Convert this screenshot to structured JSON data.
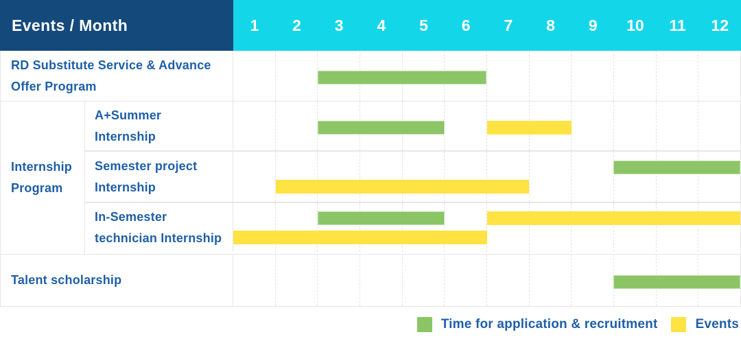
{
  "colors": {
    "header_bg": "#14497c",
    "month_header_bg": "#13d6e9",
    "header_text": "#ffffff",
    "label_text": "#1e5fa8",
    "green": "#8bc566",
    "yellow": "#fee343"
  },
  "chart_data": {
    "type": "bar",
    "subtype": "gantt-timeline",
    "title": "Events / Month",
    "xlabel": "Month",
    "x_ticks": [
      "1",
      "2",
      "3",
      "4",
      "5",
      "6",
      "7",
      "8",
      "9",
      "10",
      "11",
      "12"
    ],
    "x_range": [
      1,
      12
    ],
    "grid": true,
    "legend_position": "bottom-right",
    "legend": [
      {
        "key": "green",
        "label": "Time for application & recruitment",
        "color": "#8bc566"
      },
      {
        "key": "yellow",
        "label": "Events",
        "color": "#fee343"
      }
    ],
    "rows": [
      {
        "label": "RD Substitute Service & Advance Offer Program",
        "group": "",
        "lines": 1,
        "bars": [
          {
            "legend": "green",
            "start": 3,
            "end": 6,
            "line": 0
          }
        ]
      },
      {
        "label": "A+Summer Internship",
        "group": "Internship Program",
        "lines": 1,
        "bars": [
          {
            "legend": "green",
            "start": 3,
            "end": 5,
            "line": 0
          },
          {
            "legend": "yellow",
            "start": 7,
            "end": 8,
            "line": 0
          }
        ]
      },
      {
        "label": "Semester project Internship",
        "group": "Internship Program",
        "lines": 2,
        "bars": [
          {
            "legend": "green",
            "start": 10,
            "end": 12,
            "line": 0
          },
          {
            "legend": "yellow",
            "start": 2,
            "end": 7,
            "line": 1
          }
        ]
      },
      {
        "label": "In-Semester technician Internship",
        "group": "Internship Program",
        "lines": 2,
        "bars": [
          {
            "legend": "green",
            "start": 3,
            "end": 5,
            "line": 0
          },
          {
            "legend": "yellow",
            "start": 7,
            "end": 12,
            "line": 0
          },
          {
            "legend": "yellow",
            "start": 1,
            "end": 6,
            "line": 1
          }
        ]
      },
      {
        "label": "Talent scholarship",
        "group": "",
        "lines": 1,
        "bars": [
          {
            "legend": "green",
            "start": 10,
            "end": 12,
            "line": 0
          }
        ]
      }
    ]
  }
}
